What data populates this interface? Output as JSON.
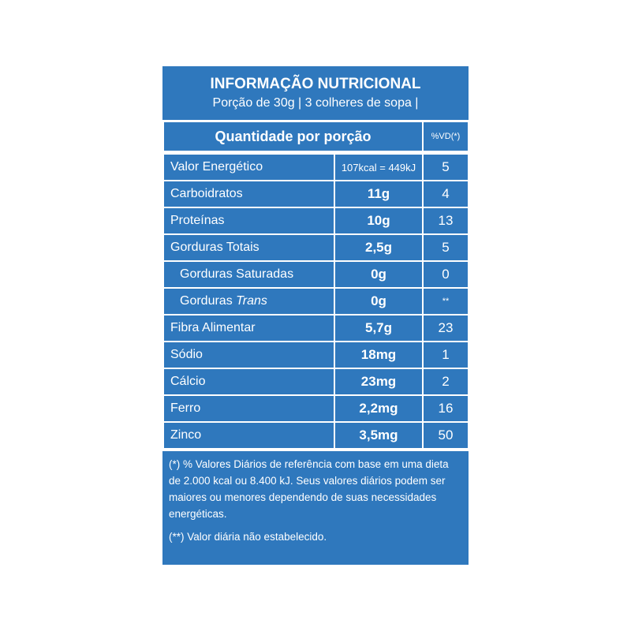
{
  "title": "INFORMAÇÃO NUTRICIONAL",
  "subtitle": "Porção de 30g | 3 colheres de sopa |",
  "header": {
    "quantity": "Quantidade por porção",
    "vd": "%VD(*)"
  },
  "rows": [
    {
      "name": "Valor Energético",
      "amount": "107kcal = 449kJ",
      "vd": "5"
    },
    {
      "name": "Carboidratos",
      "amount": "11g",
      "vd": "4"
    },
    {
      "name": "Proteínas",
      "amount": "10g",
      "vd": "13"
    },
    {
      "name": "Gorduras Totais",
      "amount": "2,5g",
      "vd": "5"
    },
    {
      "name": "Gorduras Saturadas",
      "amount": "0g",
      "vd": "0"
    },
    {
      "name": "Gorduras",
      "name_italic": "Trans",
      "amount": "0g",
      "vd": "**"
    },
    {
      "name": "Fibra Alimentar",
      "amount": "5,7g",
      "vd": "23"
    },
    {
      "name": "Sódio",
      "amount": "18mg",
      "vd": "1"
    },
    {
      "name": "Cálcio",
      "amount": "23mg",
      "vd": "2"
    },
    {
      "name": "Ferro",
      "amount": "2,2mg",
      "vd": "16"
    },
    {
      "name": "Zinco",
      "amount": "3,5mg",
      "vd": "50"
    }
  ],
  "footnotes": [
    "(*) % Valores Diários de referência com base em uma dieta de 2.000 kcal ou 8.400 kJ. Seus valores diários podem ser maiores ou menores dependendo de suas necessidades energéticas.",
    "(**) Valor diária não estabelecido."
  ],
  "colors": {
    "panel_blue": "#2f78bd",
    "text": "#ffffff"
  }
}
